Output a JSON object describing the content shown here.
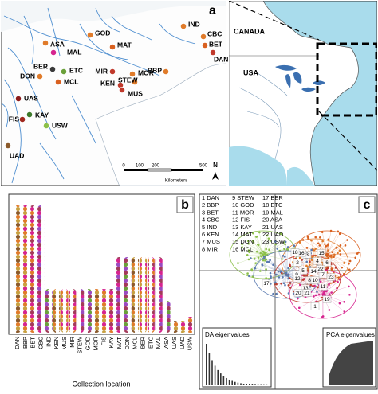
{
  "panel_a": {
    "letter": "a",
    "sites": [
      {
        "name": "IND",
        "color": "#e07b2a"
      },
      {
        "name": "CBC",
        "color": "#e07b2a"
      },
      {
        "name": "BET",
        "color": "#d9601f"
      },
      {
        "name": "DAN",
        "color": "#c0392b"
      },
      {
        "name": "BBP",
        "color": "#e07b2a"
      },
      {
        "name": "GOD",
        "color": "#e07b2a"
      },
      {
        "name": "MAT",
        "color": "#d9601f"
      },
      {
        "name": "ASA",
        "color": "#e07b2a"
      },
      {
        "name": "MAL",
        "color": "#d6248f"
      },
      {
        "name": "BER",
        "color": "#3a3a3a"
      },
      {
        "name": "DON",
        "color": "#e07b2a"
      },
      {
        "name": "ETC",
        "color": "#6aa03a"
      },
      {
        "name": "MIR",
        "color": "#c0392b"
      },
      {
        "name": "MOR",
        "color": "#e07b2a"
      },
      {
        "name": "KEN",
        "color": "#c0392b"
      },
      {
        "name": "STEW",
        "color": "#e07b2a"
      },
      {
        "name": "MUS",
        "color": "#c0392b"
      },
      {
        "name": "MCL",
        "color": "#d9601f"
      },
      {
        "name": "UAS",
        "color": "#8b1a1a"
      },
      {
        "name": "FIS",
        "color": "#a0281e"
      },
      {
        "name": "KAY",
        "color": "#3d7a2a"
      },
      {
        "name": "USW",
        "color": "#8cc04a"
      },
      {
        "name": "UAD",
        "color": "#8b5a2b"
      }
    ],
    "scale_ticks": [
      "0",
      "100",
      "200",
      "500"
    ],
    "scale_unit": "Kilometers",
    "north": "N"
  },
  "inset": {
    "labels": [
      "CANADA",
      "USA"
    ]
  },
  "panel_b": {
    "letter": "b",
    "x_label": "Collection location",
    "categories": [
      "DAN",
      "BBP",
      "BET",
      "CBC",
      "IND",
      "KEN",
      "MUS",
      "MIR",
      "STEW",
      "GOD",
      "MOR",
      "FIS",
      "KAY",
      "MAT",
      "DON",
      "MCL",
      "BER",
      "ETC",
      "MAL",
      "ASA",
      "UAS",
      "UAD",
      "USW"
    ],
    "values": [
      32,
      32,
      32,
      32,
      11,
      11,
      11,
      11,
      11,
      11,
      11,
      11,
      11,
      19,
      19,
      19,
      19,
      19,
      19,
      8,
      3,
      3,
      4
    ]
  },
  "panel_c": {
    "letter": "c",
    "legend": [
      "1 DAN",
      "2 BBP",
      "3 BET",
      "4 CBC",
      "5 IND",
      "6 KEN",
      "7 MUS",
      "8 MIR",
      "9 STEW",
      "10 GOD",
      "11 MOR",
      "12 FIS",
      "13 KAY",
      "14 MAT",
      "15 DON",
      "16 MCL",
      "17 BER",
      "18 ETC",
      "19 MAL",
      "20 ASA",
      "21 UAS",
      "22 UAD",
      "23 USW"
    ],
    "cluster_labels": [
      "1",
      "2",
      "3",
      "4",
      "5",
      "6",
      "7",
      "8",
      "9",
      "10",
      "11",
      "12",
      "13",
      "14",
      "15",
      "16",
      "17",
      "18",
      "19",
      "20",
      "21",
      "22",
      "23"
    ],
    "da_label": "DA eigenvalues",
    "pca_label": "PCA eigenvalues"
  }
}
